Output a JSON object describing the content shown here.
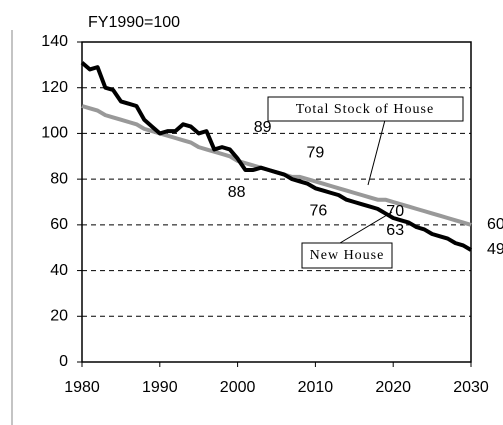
{
  "chart_data": {
    "type": "line",
    "title": "FY1990=100",
    "x": [
      1980,
      1981,
      1982,
      1983,
      1984,
      1985,
      1986,
      1987,
      1988,
      1989,
      1990,
      1991,
      1992,
      1993,
      1994,
      1995,
      1996,
      1997,
      1998,
      1999,
      2000,
      2001,
      2002,
      2003,
      2004,
      2005,
      2006,
      2007,
      2008,
      2009,
      2010,
      2011,
      2012,
      2013,
      2014,
      2015,
      2016,
      2017,
      2018,
      2019,
      2020,
      2021,
      2022,
      2023,
      2024,
      2025,
      2026,
      2027,
      2028,
      2029,
      2030
    ],
    "series": [
      {
        "name": "New House",
        "color": "#000000",
        "values": [
          131,
          128,
          129,
          120,
          119,
          114,
          113,
          112,
          106,
          103,
          100,
          101,
          101,
          104,
          103,
          100,
          101,
          93,
          94,
          93,
          89,
          84,
          84,
          85,
          84,
          83,
          82,
          80,
          79,
          78,
          76,
          75,
          74,
          73,
          71,
          70,
          69,
          68,
          67,
          65,
          63,
          62,
          61,
          59,
          58,
          56,
          55,
          54,
          52,
          51,
          49
        ]
      },
      {
        "name": "Total Stock of House",
        "color": "#999999",
        "values": [
          112,
          111,
          110,
          108,
          107,
          106,
          105,
          104,
          102,
          101,
          100,
          99,
          98,
          97,
          96,
          94,
          93,
          92,
          91,
          90,
          88,
          87,
          86,
          85,
          84,
          83,
          82,
          81,
          81,
          80,
          79,
          78,
          77,
          76,
          75,
          74,
          73,
          72,
          71,
          71,
          70,
          69,
          68,
          67,
          66,
          65,
          64,
          63,
          62,
          61,
          60
        ]
      }
    ],
    "annotations": [
      {
        "x": 2000,
        "y": 89
      },
      {
        "x": 2000,
        "y": 88
      },
      {
        "x": 2010,
        "y": 79
      },
      {
        "x": 2010,
        "y": 76
      },
      {
        "x": 2020,
        "y": 70
      },
      {
        "x": 2020,
        "y": 63
      },
      {
        "x": 2030,
        "y": 60
      },
      {
        "x": 2030,
        "y": 49
      }
    ],
    "xlim": [
      1980,
      2030
    ],
    "xticks": [
      1980,
      1990,
      2000,
      2010,
      2020,
      2030
    ],
    "ylim": [
      0,
      140
    ],
    "yticks": [
      0,
      20,
      40,
      60,
      80,
      100,
      120,
      140
    ],
    "grid": true
  }
}
